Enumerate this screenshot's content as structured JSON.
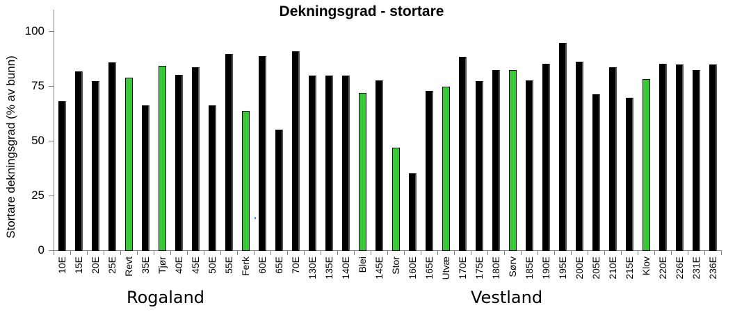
{
  "chart_data": {
    "type": "bar",
    "title": "Dekningsgrad - stortare",
    "xlabel": "",
    "ylabel": "Stortare dekningsgrad  (% av bunn)",
    "ylim": [
      0,
      110
    ],
    "yticks": [
      0,
      25,
      50,
      75,
      100
    ],
    "grid": false,
    "legend": null,
    "categories": [
      "10E",
      "15E",
      "20E",
      "25E",
      "Revt",
      "35E",
      "Tjør",
      "40E",
      "45E",
      "50E",
      "55E",
      "Ferk",
      "60E",
      "65E",
      "70E",
      "130E",
      "135E",
      "140E",
      "Blei",
      "145E",
      "Stor",
      "160E",
      "165E",
      "Utvæ",
      "170E",
      "175E",
      "180E",
      "Sørv",
      "185E",
      "190E",
      "195E",
      "200E",
      "205E",
      "210E",
      "215E",
      "Klov",
      "220E",
      "226E",
      "231E",
      "236E"
    ],
    "values": [
      68.5,
      82,
      77.5,
      86,
      79,
      66.5,
      84.5,
      80.5,
      84,
      66.5,
      90,
      64,
      89,
      55.5,
      91,
      80,
      80,
      80,
      72,
      78,
      47,
      35.5,
      73,
      75,
      88.5,
      77.5,
      82.5,
      82.5,
      78,
      85.5,
      95,
      86.5,
      71.5,
      84,
      70,
      78.5,
      85.5,
      85,
      82.5,
      85
    ],
    "colors": [
      "black",
      "black",
      "black",
      "black",
      "green",
      "black",
      "green",
      "black",
      "black",
      "black",
      "black",
      "green",
      "black",
      "black",
      "black",
      "black",
      "black",
      "black",
      "green",
      "black",
      "green",
      "black",
      "black",
      "green",
      "black",
      "black",
      "black",
      "green",
      "black",
      "black",
      "black",
      "black",
      "black",
      "black",
      "black",
      "green",
      "black",
      "black",
      "black",
      "black"
    ],
    "series_colors": {
      "black": "#000000",
      "green": "#33cc33"
    },
    "group_labels": [
      {
        "label": "Rogaland",
        "center_index": 6
      },
      {
        "label": "Vestland",
        "center_index": 26
      }
    ]
  },
  "title": "Dekningsgrad - stortare",
  "ylabel": "Stortare dekningsgrad  (% av bunn)",
  "regions": {
    "left": "Rogaland",
    "right": "Vestland"
  }
}
